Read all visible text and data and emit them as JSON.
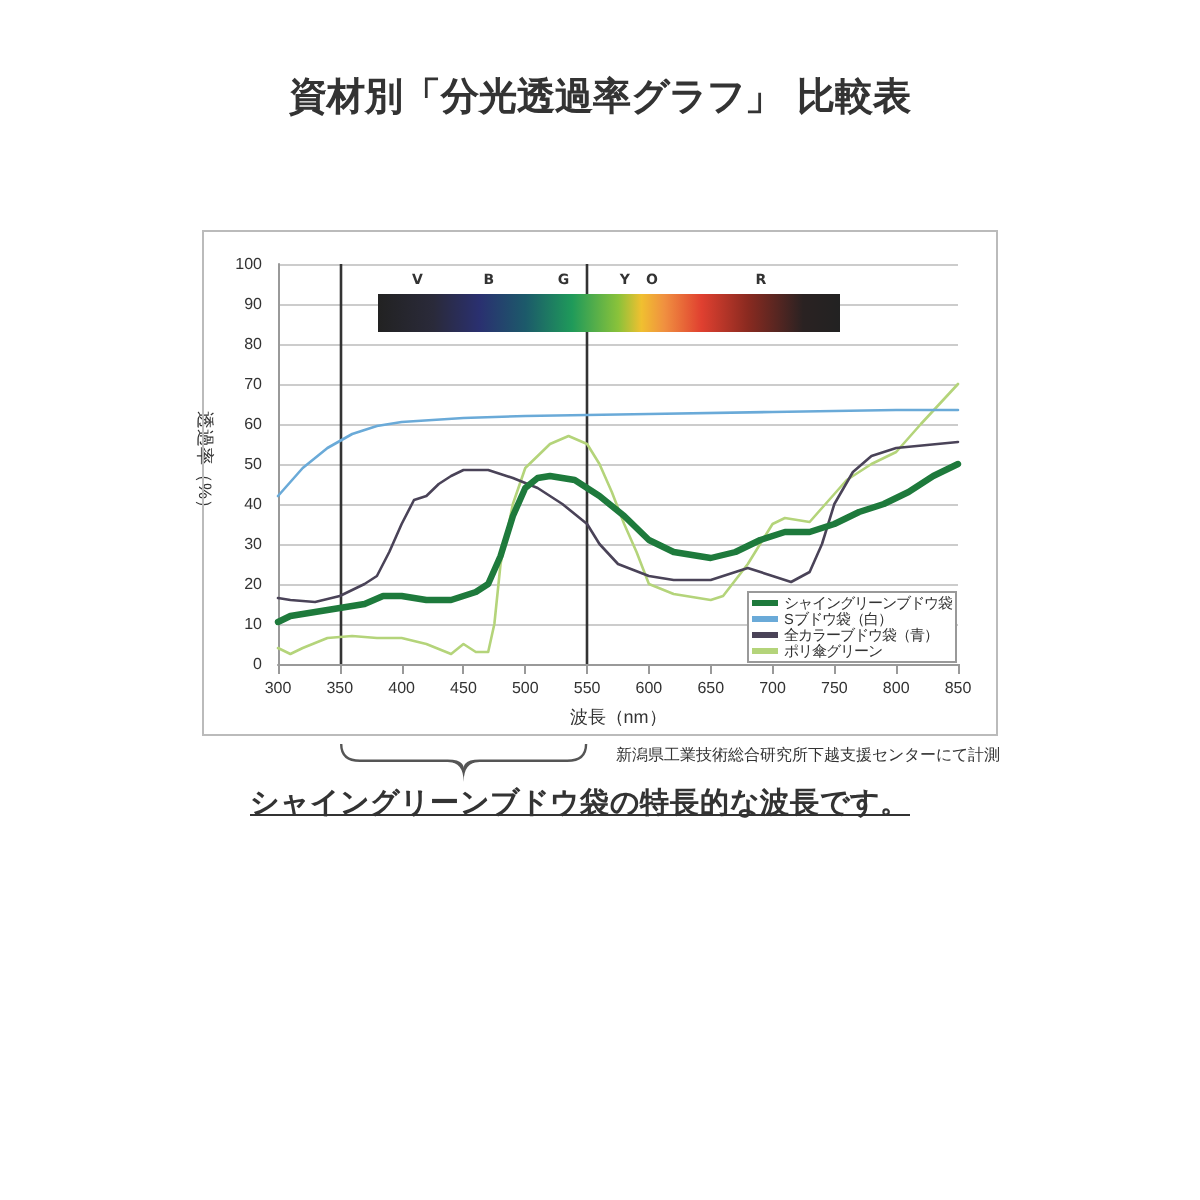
{
  "chart_data": {
    "type": "line",
    "title": "資材別「分光透過率グラフ」 比較表",
    "xlabel": "波長（nm）",
    "ylabel": "透過率（%）",
    "xlim": [
      300,
      850
    ],
    "xticks": [
      300,
      350,
      400,
      450,
      500,
      550,
      600,
      650,
      700,
      750,
      800,
      850
    ],
    "ylim": [
      0,
      100
    ],
    "yticks": [
      0,
      10,
      20,
      30,
      40,
      50,
      60,
      70,
      80,
      90,
      100
    ],
    "grid": "y",
    "legend": "bottom right",
    "marker": "none",
    "line_style": "solid",
    "ref_lines": [
      {
        "axis": "x",
        "value": 350,
        "color": "#333333"
      },
      {
        "axis": "x",
        "value": 550,
        "color": "#333333"
      }
    ],
    "annotations": [
      "新潟県工業技術総合研究所下越支援センターにて計測",
      "シャイングリーンブドウ袋の特長的な波長です。",
      "V",
      "B",
      "G",
      "Y",
      "O",
      "R"
    ],
    "series": [
      {
        "name": "シャイングリーンブドウ袋",
        "color": "#1e7a3c",
        "x": [
          300,
          310,
          330,
          350,
          370,
          385,
          400,
          420,
          440,
          460,
          470,
          480,
          490,
          500,
          510,
          520,
          540,
          560,
          580,
          600,
          620,
          650,
          670,
          690,
          710,
          730,
          750,
          770,
          790,
          810,
          830,
          850
        ],
        "values": [
          10.5,
          12,
          13,
          14,
          15,
          17,
          17,
          16,
          16,
          18,
          20,
          27,
          37,
          44,
          46.5,
          47,
          46,
          42,
          37,
          31,
          28,
          26.5,
          28,
          31,
          33,
          33,
          35,
          38,
          40,
          43,
          47,
          50
        ]
      },
      {
        "name": "Sブドウ袋（白）",
        "color": "#6aaad8",
        "x": [
          300,
          320,
          340,
          360,
          380,
          400,
          450,
          500,
          600,
          700,
          800,
          850
        ],
        "values": [
          42,
          49,
          54,
          57.5,
          59.5,
          60.5,
          61.5,
          62,
          62.5,
          63,
          63.5,
          63.5
        ]
      },
      {
        "name": "全カラーブドウ袋（青）",
        "color": "#4a4358",
        "x": [
          300,
          310,
          330,
          350,
          370,
          380,
          390,
          400,
          410,
          420,
          430,
          440,
          450,
          470,
          490,
          510,
          530,
          550,
          560,
          575,
          600,
          620,
          650,
          670,
          680,
          700,
          715,
          730,
          740,
          750,
          765,
          780,
          800,
          850
        ],
        "values": [
          16.5,
          16,
          15.5,
          17,
          20,
          22,
          28,
          35,
          41,
          42,
          45,
          47,
          48.5,
          48.5,
          46.5,
          44,
          40,
          35,
          30,
          25,
          22,
          21,
          21,
          23,
          24,
          22,
          20.5,
          23,
          30,
          40,
          48,
          52,
          54,
          55.5
        ]
      },
      {
        "name": "ポリ傘グリーン",
        "color": "#b4d47a",
        "x": [
          300,
          310,
          320,
          340,
          360,
          380,
          400,
          420,
          440,
          450,
          460,
          470,
          475,
          480,
          490,
          500,
          520,
          535,
          550,
          560,
          570,
          580,
          590,
          600,
          620,
          650,
          660,
          680,
          700,
          710,
          730,
          740,
          760,
          780,
          800,
          820,
          850
        ],
        "values": [
          4,
          2.5,
          4,
          6.5,
          7,
          6.5,
          6.5,
          5,
          2.5,
          5,
          3,
          3,
          10,
          25,
          40,
          49,
          55,
          57,
          55,
          50,
          43,
          35,
          28,
          20,
          17.5,
          16,
          17,
          25,
          35,
          36.5,
          35.5,
          39,
          46,
          50,
          53,
          60,
          70
        ]
      }
    ]
  }
}
